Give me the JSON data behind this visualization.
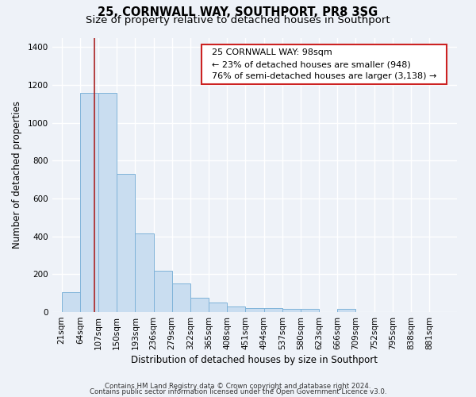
{
  "title": "25, CORNWALL WAY, SOUTHPORT, PR8 3SG",
  "subtitle": "Size of property relative to detached houses in Southport",
  "xlabel": "Distribution of detached houses by size in Southport",
  "ylabel": "Number of detached properties",
  "bar_labels": [
    "21sqm",
    "64sqm",
    "107sqm",
    "150sqm",
    "193sqm",
    "236sqm",
    "279sqm",
    "322sqm",
    "365sqm",
    "408sqm",
    "451sqm",
    "494sqm",
    "537sqm",
    "580sqm",
    "623sqm",
    "666sqm",
    "709sqm",
    "752sqm",
    "795sqm",
    "838sqm",
    "881sqm"
  ],
  "bar_values": [
    105,
    1160,
    1160,
    730,
    415,
    220,
    150,
    75,
    50,
    30,
    20,
    20,
    15,
    15,
    0,
    15,
    0,
    0,
    0,
    0,
    0
  ],
  "bar_edge_color": "#7fb3d9",
  "bar_fill_color": "#c9ddf0",
  "ylim": [
    0,
    1450
  ],
  "yticks": [
    0,
    200,
    400,
    600,
    800,
    1000,
    1200,
    1400
  ],
  "property_line_x": 98,
  "bin_edges": [
    21,
    64,
    107,
    150,
    193,
    236,
    279,
    322,
    365,
    408,
    451,
    494,
    537,
    580,
    623,
    666,
    709,
    752,
    795,
    838,
    881,
    924
  ],
  "annotation_title": "25 CORNWALL WAY: 98sqm",
  "annotation_line1": "← 23% of detached houses are smaller (948)",
  "annotation_line2": "76% of semi-detached houses are larger (3,138) →",
  "annotation_box_facecolor": "#ffffff",
  "annotation_box_edgecolor": "#cc2222",
  "footer1": "Contains HM Land Registry data © Crown copyright and database right 2024.",
  "footer2": "Contains public sector information licensed under the Open Government Licence v3.0.",
  "background_color": "#eef2f8",
  "plot_bg_color": "#eef2f8",
  "grid_color": "#ffffff",
  "title_fontsize": 10.5,
  "subtitle_fontsize": 9.5,
  "axis_label_fontsize": 8.5,
  "tick_fontsize": 7.5,
  "footer_fontsize": 6.2
}
